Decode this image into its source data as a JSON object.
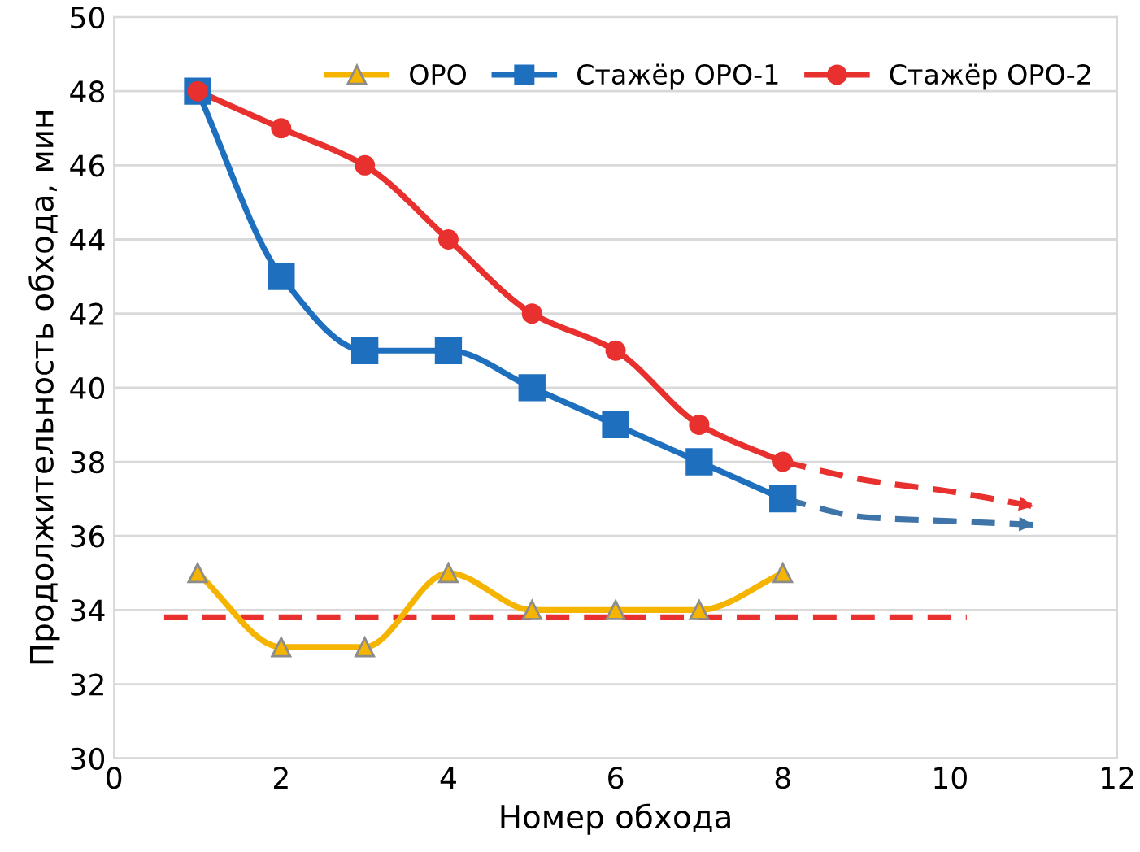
{
  "chart_data": {
    "type": "line",
    "xlabel": "Номер обхода",
    "ylabel": "Продолжительность обхода, мин",
    "xlim": [
      0,
      12
    ],
    "xticks": [
      0,
      2,
      4,
      6,
      8,
      10,
      12
    ],
    "ylim": [
      30,
      50
    ],
    "yticks": [
      30,
      32,
      34,
      36,
      38,
      40,
      42,
      44,
      46,
      48,
      50
    ],
    "grid": "y",
    "legend": "top right",
    "series": [
      {
        "name": "ОРО",
        "color": "#f5b400",
        "marker": "triangle",
        "line_style": "solid",
        "x": [
          1,
          2,
          3,
          4,
          5,
          6,
          7,
          8
        ],
        "values": [
          35,
          33,
          33,
          35,
          34,
          34,
          34,
          35
        ]
      },
      {
        "name": "Стажёр ОРО-1",
        "color": "#1f6fbf",
        "marker": "square",
        "line_style": "solid",
        "x": [
          1,
          2,
          3,
          4,
          5,
          6,
          7,
          8
        ],
        "values": [
          48,
          43,
          41,
          41,
          40,
          39,
          38,
          37
        ]
      },
      {
        "name": "Стажёр ОРО-2",
        "color": "#e8312f",
        "marker": "circle",
        "line_style": "solid",
        "x": [
          1,
          2,
          3,
          4,
          5,
          6,
          7,
          8
        ],
        "values": [
          48,
          47,
          46,
          44,
          42,
          41,
          39,
          38
        ]
      },
      {
        "color": "#3f74a8",
        "marker": "none",
        "line_style": "dashed",
        "x": [
          8,
          9,
          10,
          11
        ],
        "values": [
          37,
          36.5,
          36.4,
          36.3
        ]
      },
      {
        "color": "#e8312f",
        "marker": "none",
        "line_style": "dashed",
        "x": [
          8,
          9,
          10,
          11
        ],
        "values": [
          38,
          37.5,
          37.2,
          36.8
        ]
      }
    ],
    "ref_lines": [
      {
        "axis": "y",
        "value": 33.8,
        "color": "#e8312f",
        "line_style": "dashed"
      }
    ]
  }
}
